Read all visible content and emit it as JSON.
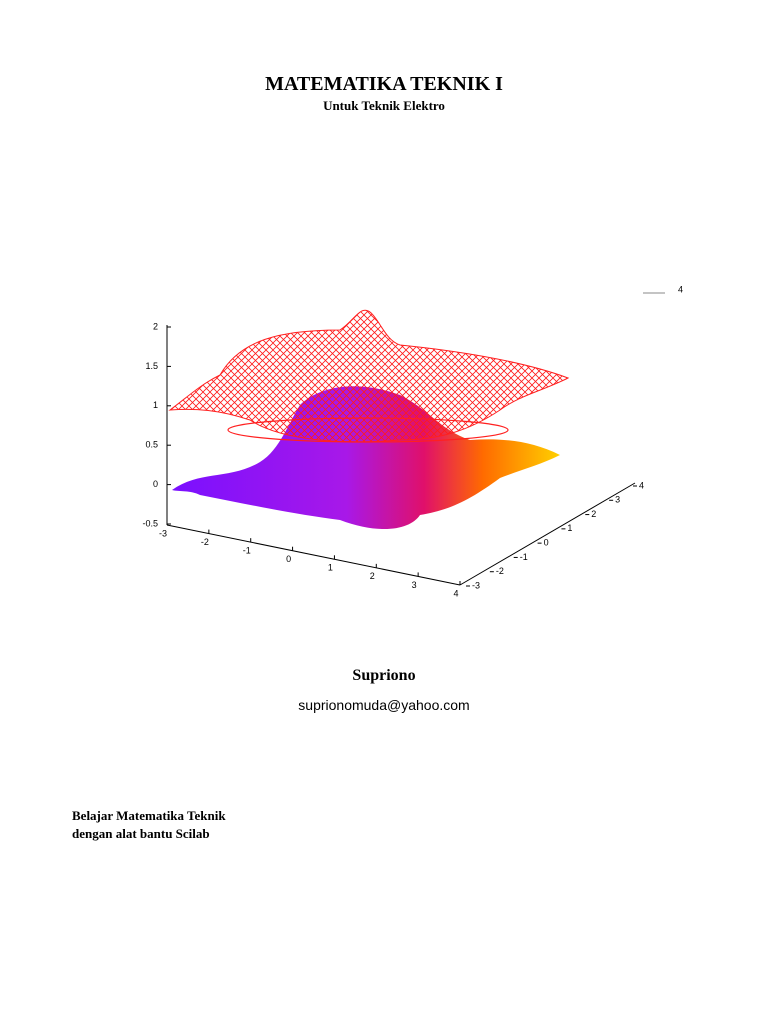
{
  "header": {
    "title": "MATEMATIKA TEKNIK I",
    "subtitle": "Untuk Teknik Elektro"
  },
  "figure": {
    "z_ticks": [
      "2",
      "1.5",
      "1",
      "0.5",
      "0",
      "-0.5"
    ],
    "x_ticks": [
      "-3",
      "-2",
      "-1",
      "0",
      "1",
      "2",
      "3",
      "4"
    ],
    "y_ticks": [
      "-3",
      "-2",
      "-1",
      "0",
      "1",
      "2",
      "3",
      "4"
    ],
    "corner_label": "4"
  },
  "author": {
    "name": "Supriono",
    "email": "suprionomuda@yahoo.com"
  },
  "description": {
    "line1": "Belajar Matematika Teknik",
    "line2": "dengan alat bantu Scilab"
  }
}
